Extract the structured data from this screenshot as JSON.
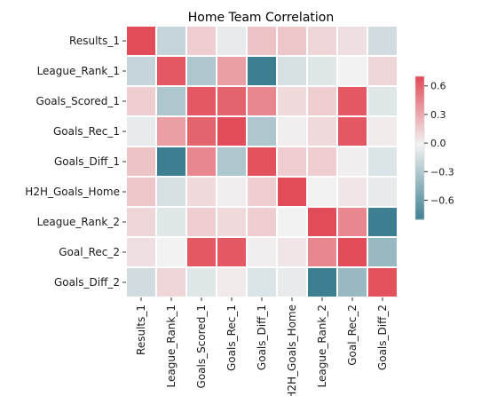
{
  "chart_data": {
    "type": "heatmap",
    "title": "Home Team Correlation",
    "xlabel": "",
    "ylabel": "",
    "row_labels": [
      "Results_1",
      "League_Rank_1",
      "Goals_Scored_1",
      "Goals_Rec_1",
      "Goals_Diff_1",
      "H2H_Goals_Home",
      "League_Rank_2",
      "Goal_Rec_2",
      "Goals_Diff_2"
    ],
    "col_labels": [
      "Results_1",
      "League_Rank_1",
      "Goals_Scored_1",
      "Goals_Rec_1",
      "Goals_Diff_1",
      "H2H_Goals_Home",
      "League_Rank_2",
      "Goal_Rec_2",
      "Goals_Diff_2"
    ],
    "values": [
      [
        0.7,
        -0.2,
        0.15,
        -0.05,
        0.2,
        0.18,
        0.12,
        0.08,
        -0.15
      ],
      [
        -0.2,
        0.65,
        -0.3,
        0.35,
        -0.8,
        -0.12,
        -0.08,
        0.0,
        0.12
      ],
      [
        0.15,
        -0.3,
        0.65,
        0.6,
        0.45,
        0.1,
        0.15,
        0.65,
        -0.08
      ],
      [
        -0.05,
        0.35,
        0.6,
        0.7,
        -0.3,
        0.02,
        0.1,
        0.65,
        0.03
      ],
      [
        0.2,
        -0.8,
        0.45,
        -0.3,
        0.68,
        0.15,
        0.15,
        0.02,
        -0.1
      ],
      [
        0.18,
        -0.12,
        0.1,
        0.02,
        0.15,
        0.7,
        0.0,
        0.05,
        -0.05
      ],
      [
        0.12,
        -0.08,
        0.15,
        0.1,
        0.15,
        0.0,
        0.7,
        0.45,
        -0.8
      ],
      [
        0.08,
        0.0,
        0.65,
        0.65,
        0.02,
        0.05,
        0.45,
        0.7,
        -0.4
      ],
      [
        -0.15,
        0.12,
        -0.08,
        0.03,
        -0.1,
        -0.05,
        -0.8,
        -0.4,
        0.68
      ]
    ],
    "colorbar": {
      "min": -0.8,
      "max": 0.7,
      "ticks": [
        0.6,
        0.3,
        0.0,
        -0.3,
        -0.6
      ],
      "tick_labels": [
        "0.6",
        "0.3",
        "0.0",
        "−0.3",
        "−0.6"
      ]
    },
    "colormap": {
      "negative": "#3d7f92",
      "center": "#f2f2f2",
      "positive": "#e24c58"
    },
    "grid": false,
    "legend": "colorbar-right"
  }
}
